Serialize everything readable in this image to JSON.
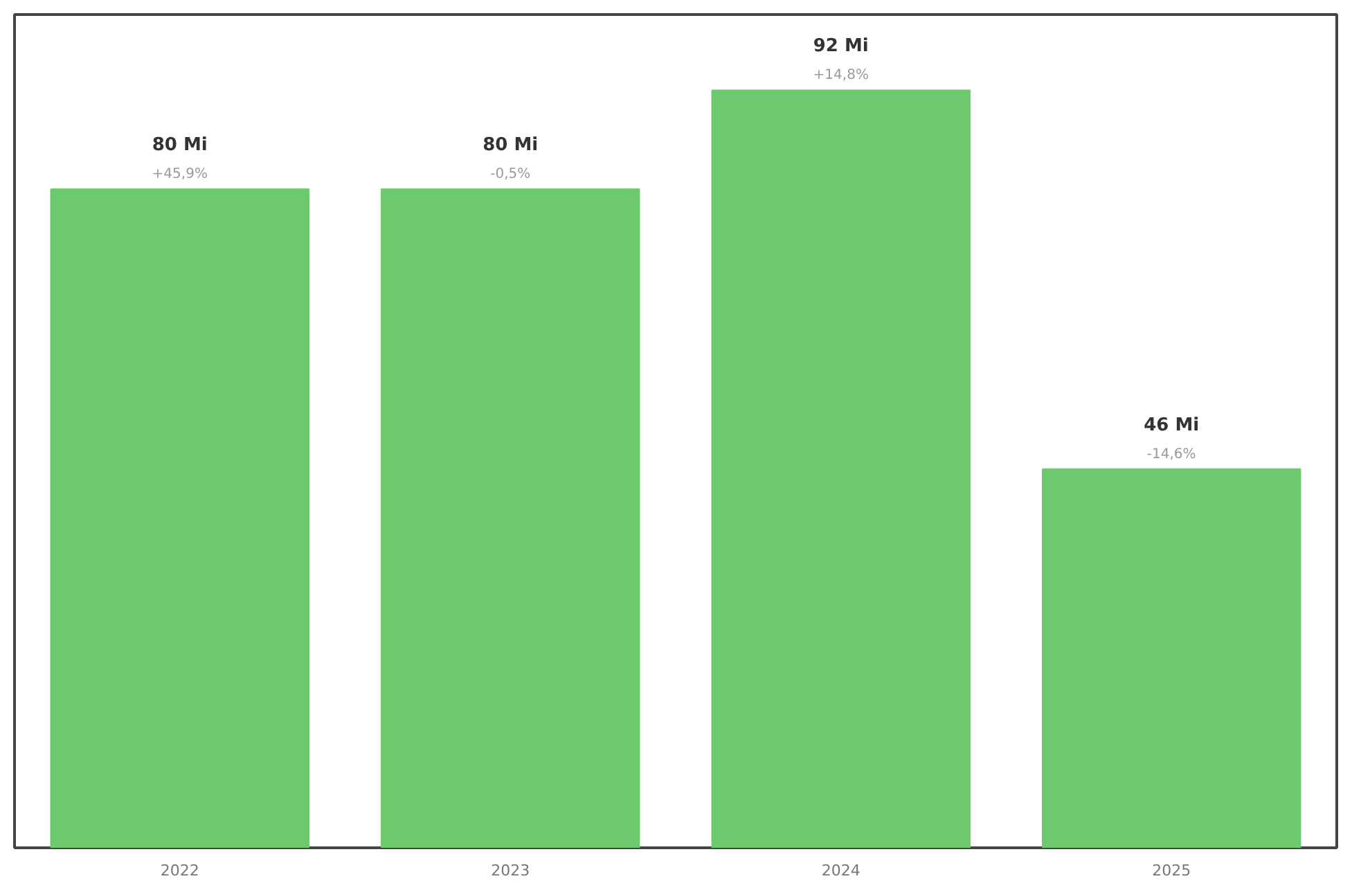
{
  "chart_data": {
    "type": "bar",
    "categories": [
      "2022",
      "2023",
      "2024",
      "2025"
    ],
    "values": [
      80,
      80,
      92,
      46
    ],
    "color": "#6dc96d",
    "value_labels": [
      "80 Mi",
      "80 Mi",
      "92 Mi",
      "46 Mi"
    ],
    "annotations": [
      {
        "text": "+45,9%",
        "x": "2022",
        "y": 80
      },
      {
        "text": "-0,5%",
        "x": "2023",
        "y": 80
      },
      {
        "text": "+14,8%",
        "x": "2024",
        "y": 92
      },
      {
        "text": "-14,6%",
        "x": "2025",
        "y": 46
      }
    ],
    "grid": false
  }
}
